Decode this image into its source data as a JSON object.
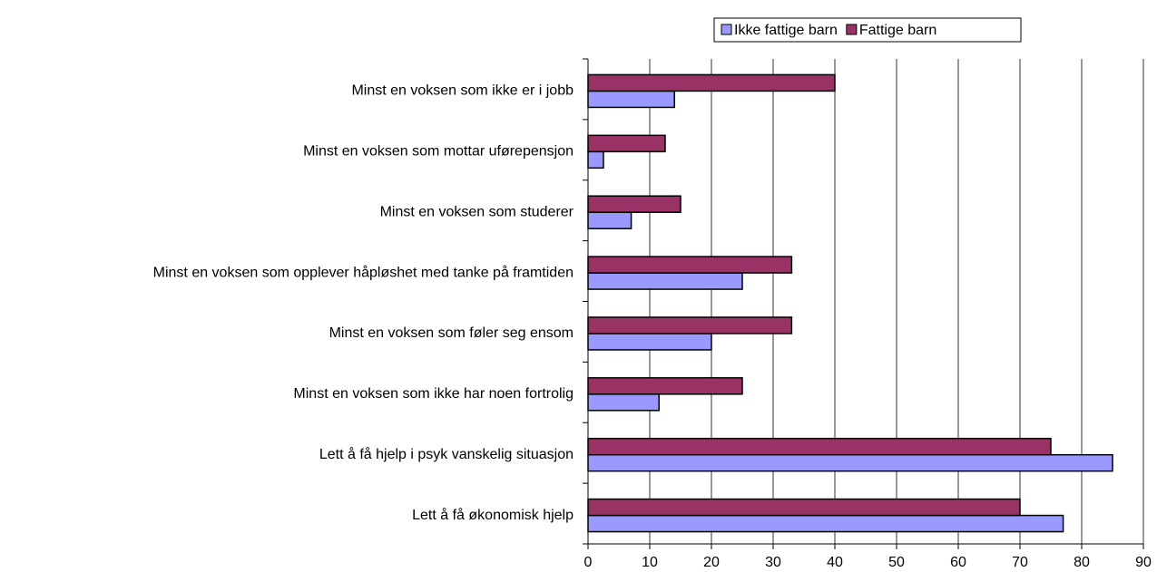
{
  "chart_data": {
    "type": "hbar",
    "categories": [
      "Minst en voksen som ikke er i jobb",
      "Minst en voksen som mottar uførepensjon",
      "Minst en voksen som studerer",
      "Minst en voksen som opplever håpløshet med tanke på framtiden",
      "Minst en voksen som føler seg ensom",
      "Minst en voksen som ikke har noen fortrolig",
      "Lett å få hjelp i psyk vanskelig situasjon",
      "Lett å få økonomisk hjelp"
    ],
    "series": [
      {
        "name": "Ikke fattige barn",
        "color": "#9999ff",
        "values": [
          14,
          2.5,
          7,
          25,
          20,
          11.5,
          85,
          77
        ]
      },
      {
        "name": "Fattige barn",
        "color": "#993366",
        "values": [
          40,
          12.5,
          15,
          33,
          33,
          25,
          75,
          70
        ]
      }
    ],
    "xlim": [
      0,
      90
    ],
    "xticks": [
      0,
      10,
      20,
      30,
      40,
      50,
      60,
      70,
      80,
      90
    ],
    "grid": true,
    "legend": "top"
  }
}
